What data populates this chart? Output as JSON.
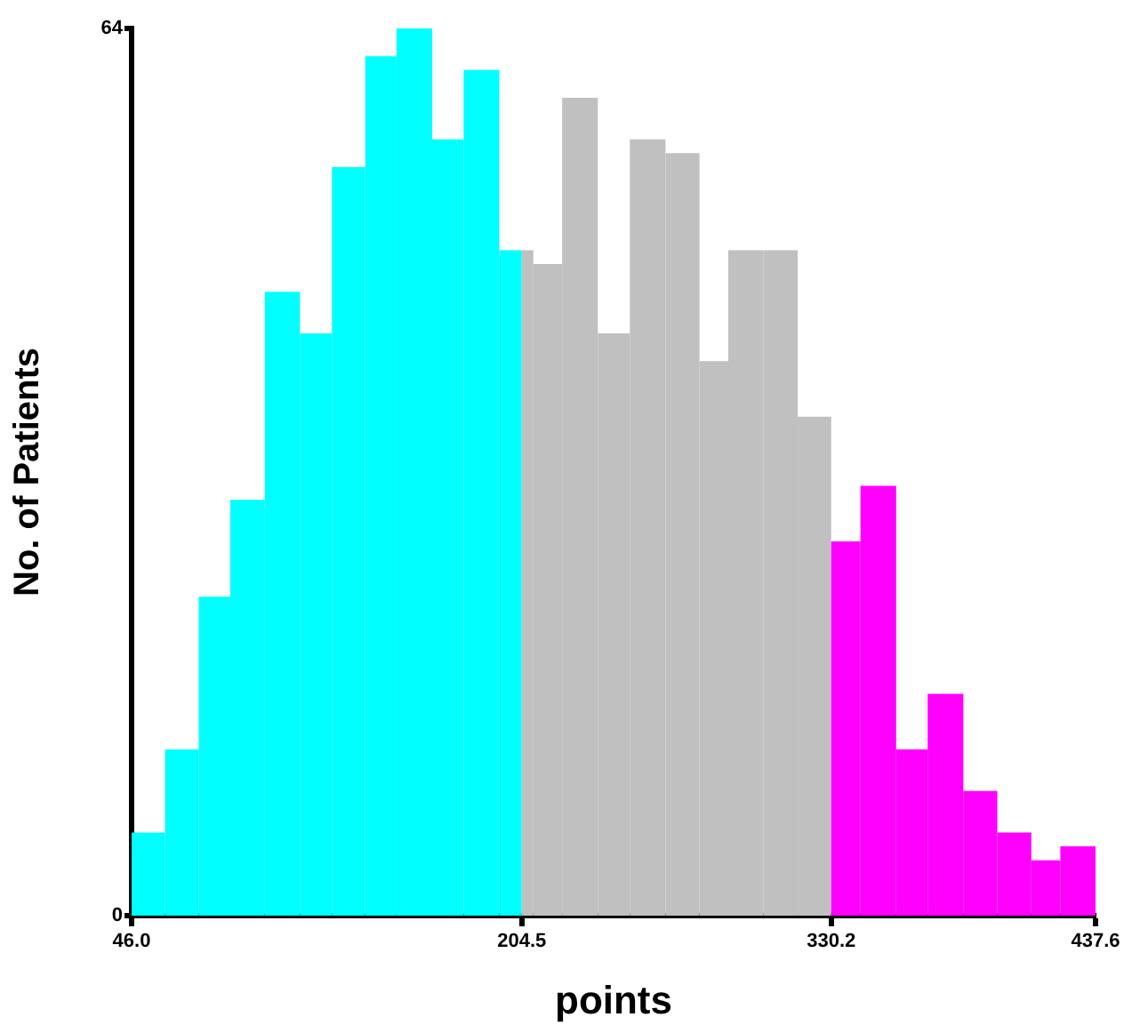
{
  "chart_data": {
    "type": "histogram",
    "xlabel": "points",
    "ylabel": "No. of Patients",
    "bins": [
      46.0,
      59.6,
      73.3,
      86.1,
      100.1,
      114.4,
      127.4,
      140.9,
      153.6,
      168.1,
      180.9,
      195.4,
      204.5,
      209.2,
      220.9,
      235.4,
      248.4,
      262.9,
      276.7,
      288.4,
      302.6,
      316.6,
      330.2,
      342.1,
      356.6,
      369.4,
      383.9,
      397.7,
      411.5,
      423.3,
      437.6
    ],
    "values": [
      6,
      12,
      23,
      30,
      45,
      42,
      54,
      62,
      64,
      56,
      61,
      48,
      48,
      47,
      59,
      42,
      56,
      55,
      40,
      48,
      48,
      36,
      27,
      31,
      12,
      16,
      9,
      6,
      4,
      5
    ],
    "colors": [
      "#00ffff",
      "#00ffff",
      "#00ffff",
      "#00ffff",
      "#00ffff",
      "#00ffff",
      "#00ffff",
      "#00ffff",
      "#00ffff",
      "#00ffff",
      "#00ffff",
      "#00ffff",
      "#c0c0c0",
      "#c0c0c0",
      "#c0c0c0",
      "#c0c0c0",
      "#c0c0c0",
      "#c0c0c0",
      "#c0c0c0",
      "#c0c0c0",
      "#c0c0c0",
      "#c0c0c0",
      "#ff00ff",
      "#ff00ff",
      "#ff00ff",
      "#ff00ff",
      "#ff00ff",
      "#ff00ff",
      "#ff00ff",
      "#ff00ff"
    ],
    "xlim": [
      46.0,
      437.6
    ],
    "xticks": [
      {
        "value": 46.0,
        "label": "46.0"
      },
      {
        "value": 204.5,
        "label": "204.5"
      },
      {
        "value": 330.2,
        "label": "330.2"
      },
      {
        "value": 437.6,
        "label": "437.6"
      }
    ],
    "ylim": [
      0,
      64
    ],
    "yticks": [
      0,
      64
    ],
    "grid": false,
    "legend": false
  }
}
